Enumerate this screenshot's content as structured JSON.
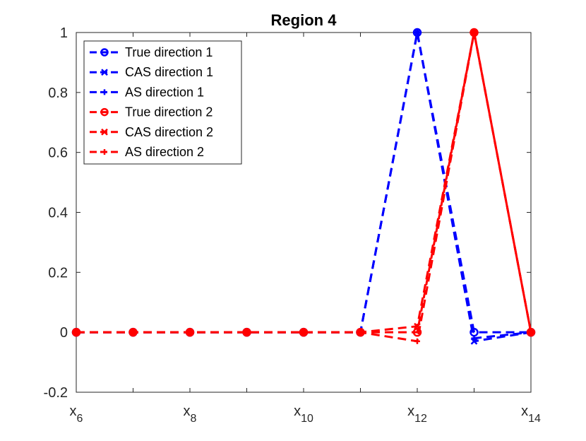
{
  "chart_data": {
    "type": "line",
    "title": "Region 4",
    "xlabel": "",
    "ylabel": "",
    "x": [
      "6",
      "7",
      "8",
      "9",
      "10",
      "11",
      "12",
      "13",
      "14"
    ],
    "x_tick_labels": [
      {
        "x": "6",
        "base": "x",
        "sub": "6"
      },
      {
        "x": "8",
        "base": "x",
        "sub": "8"
      },
      {
        "x": "10",
        "base": "x",
        "sub": "10"
      },
      {
        "x": "12",
        "base": "x",
        "sub": "12"
      },
      {
        "x": "14",
        "base": "x",
        "sub": "14"
      }
    ],
    "xlim": [
      6,
      14
    ],
    "ylim": [
      -0.2,
      1
    ],
    "y_ticks": [
      "-0.2",
      "0",
      "0.2",
      "0.4",
      "0.6",
      "0.8",
      "1"
    ],
    "grid": false,
    "legend_position": "top-left",
    "series": [
      {
        "name": "True direction 1",
        "color": "#0000ff",
        "marker": "circle",
        "values": [
          0,
          0,
          0,
          0,
          0,
          0,
          1,
          0,
          0
        ]
      },
      {
        "name": "CAS direction 1",
        "color": "#0000ff",
        "marker": "x",
        "values": [
          0,
          0,
          0,
          0,
          0,
          0,
          1,
          -0.03,
          0
        ]
      },
      {
        "name": "AS direction 1",
        "color": "#0000ff",
        "marker": "plus",
        "values": [
          0,
          0,
          0,
          0,
          0,
          0,
          1,
          -0.02,
          0
        ]
      },
      {
        "name": "True direction 2",
        "color": "#ff0000",
        "marker": "circle",
        "values": [
          0,
          0,
          0,
          0,
          0,
          0,
          0,
          1,
          0
        ]
      },
      {
        "name": "CAS direction 2",
        "color": "#ff0000",
        "marker": "x",
        "values": [
          0,
          0,
          0,
          0,
          0,
          0,
          0.02,
          1,
          0
        ]
      },
      {
        "name": "AS direction 2",
        "color": "#ff0000",
        "marker": "plus",
        "values": [
          0,
          0,
          0,
          0,
          0,
          0,
          -0.03,
          1,
          0
        ]
      }
    ]
  }
}
